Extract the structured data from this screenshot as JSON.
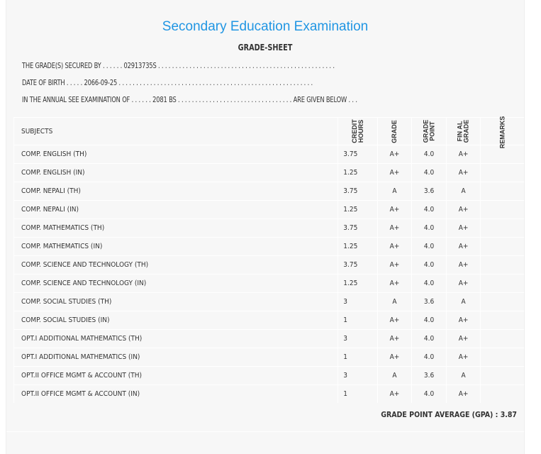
{
  "title": "Secondary Education Examination",
  "subtitle": "GRADE-SHEET",
  "lines": {
    "secured": "THE GRADE(S) SECURED BY . . . . . . 02913735S . . . . . . . . . . . . . . . . . . . . . . . . . . . . . . . . . . . . . . . . . . . . . . . . . . .",
    "dob": "DATE OF BIRTH . . . . . 2066-09-25 . . . . . . . . . . . . . . . . . . . . . . . . . . . . . . . . . . . . . . . . . . . . . . . . . . . . . . . .",
    "exam": "IN THE ANNUAL SEE EXAMINATION OF . . . . . . 2081 BS . . . . . . . . . . . . . . . . . . . . . . . . . . . . . . . . . ARE GIVEN BELOW . . ."
  },
  "headers": {
    "subjects": "SUBJECTS",
    "credit1": "CREDIT",
    "credit2": "HOURS",
    "grade": "GRADE",
    "point1": "GRADE",
    "point2": "POINT",
    "final1": "FIN AL",
    "final2": "GRADE",
    "remarks": "REMARKS"
  },
  "rows": [
    [
      "COMP. ENGLISH (TH)",
      "3.75",
      "A+",
      "4.0",
      "A+"
    ],
    [
      "COMP. ENGLISH (IN)",
      "1.25",
      "A+",
      "4.0",
      "A+"
    ],
    [
      "COMP. NEPALI (TH)",
      "3.75",
      "A",
      "3.6",
      "A"
    ],
    [
      "COMP. NEPALI (IN)",
      "1.25",
      "A+",
      "4.0",
      "A+"
    ],
    [
      "COMP. MATHEMATICS (TH)",
      "3.75",
      "A+",
      "4.0",
      "A+"
    ],
    [
      "COMP. MATHEMATICS (IN)",
      "1.25",
      "A+",
      "4.0",
      "A+"
    ],
    [
      "COMP. SCIENCE AND TECHNOLOGY (TH)",
      "3.75",
      "A+",
      "4.0",
      "A+"
    ],
    [
      "COMP. SCIENCE AND TECHNOLOGY (IN)",
      "1.25",
      "A+",
      "4.0",
      "A+"
    ],
    [
      "COMP. SOCIAL STUDIES (TH)",
      "3",
      "A",
      "3.6",
      "A"
    ],
    [
      "COMP. SOCIAL STUDIES (IN)",
      "1",
      "A+",
      "4.0",
      "A+"
    ],
    [
      "OPT.I ADDITIONAL MATHEMATICS (TH)",
      "3",
      "A+",
      "4.0",
      "A+"
    ],
    [
      "OPT.I ADDITIONAL MATHEMATICS (IN)",
      "1",
      "A+",
      "4.0",
      "A+"
    ],
    [
      "OPT.II OFFICE MGMT & ACCOUNT (TH)",
      "3",
      "A",
      "3.6",
      "A"
    ],
    [
      "OPT.II OFFICE MGMT & ACCOUNT (IN)",
      "1",
      "A+",
      "4.0",
      "A+"
    ]
  ],
  "gpa": "GRADE POINT AVERAGE (GPA) : 3.87"
}
